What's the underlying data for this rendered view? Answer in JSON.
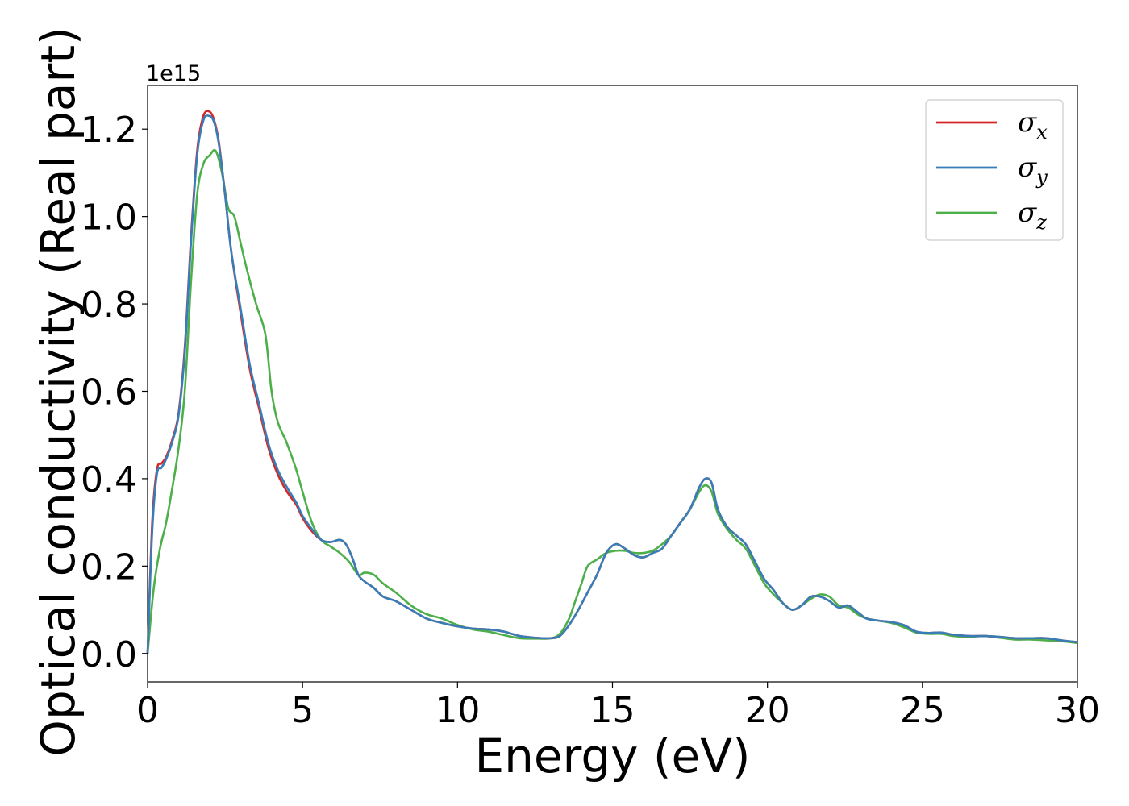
{
  "chart_data": {
    "type": "line",
    "title": "",
    "xlabel": "Energy (eV)",
    "ylabel": "Optical conductivity (Real part)",
    "y_offset_label": "1e15",
    "xlim": [
      0,
      30
    ],
    "ylim": [
      -0.065,
      1.3
    ],
    "xticks": [
      0,
      5,
      10,
      15,
      20,
      25,
      30
    ],
    "xtick_labels": [
      "0",
      "5",
      "10",
      "15",
      "20",
      "25",
      "30"
    ],
    "yticks": [
      0.0,
      0.2,
      0.4,
      0.6,
      0.8,
      1.0,
      1.2
    ],
    "ytick_labels": [
      "0.0",
      "0.2",
      "0.4",
      "0.6",
      "0.8",
      "1.0",
      "1.2"
    ],
    "grid": false,
    "legend_position": "top-right",
    "series": [
      {
        "name": "σ_x",
        "legend_main": "σ",
        "legend_sub": "x",
        "color": "#d62728",
        "x": [
          0,
          0.15,
          0.3,
          0.45,
          0.6,
          0.8,
          1.0,
          1.2,
          1.4,
          1.6,
          1.8,
          2.0,
          2.15,
          2.3,
          2.5,
          2.7,
          3.0,
          3.3,
          3.6,
          3.9,
          4.2,
          4.5,
          4.8,
          5.0,
          5.3,
          5.6,
          5.9,
          6.2,
          6.4,
          6.6,
          6.8,
          7.0,
          7.3,
          7.6,
          8.0,
          8.5,
          9.0,
          9.5,
          10.0,
          10.5,
          11.0,
          11.5,
          12.0,
          12.5,
          13.0,
          13.3,
          13.6,
          13.9,
          14.2,
          14.5,
          14.8,
          15.1,
          15.4,
          15.7,
          16.0,
          16.3,
          16.6,
          16.9,
          17.2,
          17.5,
          17.8,
          18.0,
          18.2,
          18.4,
          18.7,
          19.0,
          19.3,
          19.6,
          19.9,
          20.2,
          20.5,
          20.8,
          21.1,
          21.4,
          21.7,
          22.0,
          22.3,
          22.6,
          22.9,
          23.2,
          23.6,
          24.0,
          24.4,
          24.8,
          25.2,
          25.6,
          26.0,
          26.5,
          27.0,
          27.5,
          28.0,
          28.5,
          29.0,
          29.5,
          30.0
        ],
        "y": [
          0.0,
          0.3,
          0.42,
          0.435,
          0.45,
          0.49,
          0.55,
          0.7,
          0.95,
          1.15,
          1.23,
          1.24,
          1.22,
          1.17,
          1.05,
          0.92,
          0.78,
          0.65,
          0.56,
          0.47,
          0.41,
          0.37,
          0.34,
          0.31,
          0.28,
          0.26,
          0.255,
          0.26,
          0.25,
          0.22,
          0.18,
          0.165,
          0.15,
          0.13,
          0.12,
          0.1,
          0.08,
          0.07,
          0.062,
          0.057,
          0.055,
          0.05,
          0.04,
          0.036,
          0.035,
          0.04,
          0.065,
          0.1,
          0.14,
          0.18,
          0.23,
          0.25,
          0.24,
          0.225,
          0.22,
          0.23,
          0.24,
          0.27,
          0.3,
          0.33,
          0.38,
          0.4,
          0.39,
          0.33,
          0.29,
          0.27,
          0.25,
          0.21,
          0.17,
          0.145,
          0.115,
          0.1,
          0.11,
          0.13,
          0.13,
          0.12,
          0.105,
          0.11,
          0.095,
          0.08,
          0.075,
          0.072,
          0.065,
          0.05,
          0.047,
          0.048,
          0.043,
          0.04,
          0.04,
          0.038,
          0.035,
          0.035,
          0.035,
          0.03,
          0.026
        ]
      },
      {
        "name": "σ_y",
        "legend_main": "σ",
        "legend_sub": "y",
        "color": "#377eb8",
        "x": [
          0,
          0.15,
          0.3,
          0.45,
          0.6,
          0.8,
          1.0,
          1.2,
          1.4,
          1.6,
          1.8,
          2.0,
          2.15,
          2.3,
          2.5,
          2.7,
          3.0,
          3.3,
          3.6,
          3.9,
          4.2,
          4.5,
          4.8,
          5.0,
          5.3,
          5.6,
          5.9,
          6.2,
          6.4,
          6.6,
          6.8,
          7.0,
          7.3,
          7.6,
          8.0,
          8.5,
          9.0,
          9.5,
          10.0,
          10.5,
          11.0,
          11.5,
          12.0,
          12.5,
          13.0,
          13.3,
          13.6,
          13.9,
          14.2,
          14.5,
          14.8,
          15.1,
          15.4,
          15.7,
          16.0,
          16.3,
          16.6,
          16.9,
          17.2,
          17.5,
          17.8,
          18.0,
          18.2,
          18.4,
          18.7,
          19.0,
          19.3,
          19.6,
          19.9,
          20.2,
          20.5,
          20.8,
          21.1,
          21.4,
          21.7,
          22.0,
          22.3,
          22.6,
          22.9,
          23.2,
          23.6,
          24.0,
          24.4,
          24.8,
          25.2,
          25.6,
          26.0,
          26.5,
          27.0,
          27.5,
          28.0,
          28.5,
          29.0,
          29.5,
          30.0
        ],
        "y": [
          0.0,
          0.28,
          0.41,
          0.425,
          0.445,
          0.485,
          0.545,
          0.69,
          0.94,
          1.14,
          1.22,
          1.23,
          1.215,
          1.165,
          1.05,
          0.92,
          0.79,
          0.66,
          0.57,
          0.48,
          0.42,
          0.38,
          0.345,
          0.315,
          0.285,
          0.26,
          0.255,
          0.26,
          0.25,
          0.22,
          0.18,
          0.165,
          0.15,
          0.13,
          0.12,
          0.1,
          0.08,
          0.07,
          0.062,
          0.057,
          0.055,
          0.05,
          0.04,
          0.036,
          0.035,
          0.04,
          0.065,
          0.1,
          0.14,
          0.18,
          0.23,
          0.25,
          0.24,
          0.225,
          0.22,
          0.23,
          0.24,
          0.27,
          0.3,
          0.33,
          0.38,
          0.4,
          0.39,
          0.33,
          0.29,
          0.27,
          0.25,
          0.21,
          0.17,
          0.145,
          0.115,
          0.1,
          0.11,
          0.13,
          0.13,
          0.12,
          0.105,
          0.11,
          0.095,
          0.08,
          0.075,
          0.072,
          0.065,
          0.05,
          0.047,
          0.048,
          0.043,
          0.04,
          0.04,
          0.038,
          0.035,
          0.035,
          0.035,
          0.03,
          0.026
        ]
      },
      {
        "name": "σ_z",
        "legend_main": "σ",
        "legend_sub": "z",
        "color": "#4daf4a",
        "x": [
          0,
          0.2,
          0.4,
          0.6,
          0.8,
          1.0,
          1.2,
          1.4,
          1.6,
          1.8,
          2.0,
          2.2,
          2.4,
          2.6,
          2.8,
          3.0,
          3.2,
          3.5,
          3.8,
          4.0,
          4.2,
          4.5,
          4.8,
          5.0,
          5.3,
          5.6,
          5.9,
          6.2,
          6.5,
          6.8,
          7.0,
          7.3,
          7.6,
          8.0,
          8.5,
          9.0,
          9.5,
          10.0,
          10.5,
          11.0,
          11.5,
          12.0,
          12.5,
          13.0,
          13.3,
          13.6,
          13.8,
          14.0,
          14.2,
          14.5,
          14.8,
          15.1,
          15.4,
          15.7,
          16.0,
          16.3,
          16.6,
          16.9,
          17.2,
          17.5,
          17.8,
          18.0,
          18.2,
          18.4,
          18.7,
          19.0,
          19.3,
          19.6,
          19.9,
          20.2,
          20.5,
          20.8,
          21.1,
          21.4,
          21.7,
          22.0,
          22.3,
          22.6,
          22.9,
          23.2,
          23.6,
          24.0,
          24.4,
          24.8,
          25.2,
          25.6,
          26.0,
          26.5,
          27.0,
          27.5,
          28.0,
          28.5,
          29.0,
          29.5,
          30.0
        ],
        "y": [
          0.0,
          0.15,
          0.24,
          0.3,
          0.38,
          0.47,
          0.6,
          0.85,
          1.05,
          1.12,
          1.14,
          1.15,
          1.1,
          1.02,
          1.0,
          0.94,
          0.88,
          0.8,
          0.73,
          0.6,
          0.53,
          0.48,
          0.42,
          0.37,
          0.3,
          0.26,
          0.245,
          0.23,
          0.21,
          0.18,
          0.185,
          0.18,
          0.16,
          0.14,
          0.11,
          0.09,
          0.08,
          0.065,
          0.055,
          0.05,
          0.042,
          0.035,
          0.034,
          0.035,
          0.045,
          0.08,
          0.12,
          0.16,
          0.2,
          0.215,
          0.23,
          0.235,
          0.235,
          0.23,
          0.23,
          0.235,
          0.25,
          0.27,
          0.3,
          0.33,
          0.37,
          0.385,
          0.37,
          0.32,
          0.285,
          0.26,
          0.24,
          0.2,
          0.16,
          0.135,
          0.115,
          0.1,
          0.11,
          0.125,
          0.135,
          0.13,
          0.11,
          0.105,
          0.09,
          0.08,
          0.075,
          0.07,
          0.06,
          0.048,
          0.045,
          0.045,
          0.04,
          0.038,
          0.04,
          0.036,
          0.032,
          0.032,
          0.03,
          0.028,
          0.024
        ]
      }
    ]
  }
}
